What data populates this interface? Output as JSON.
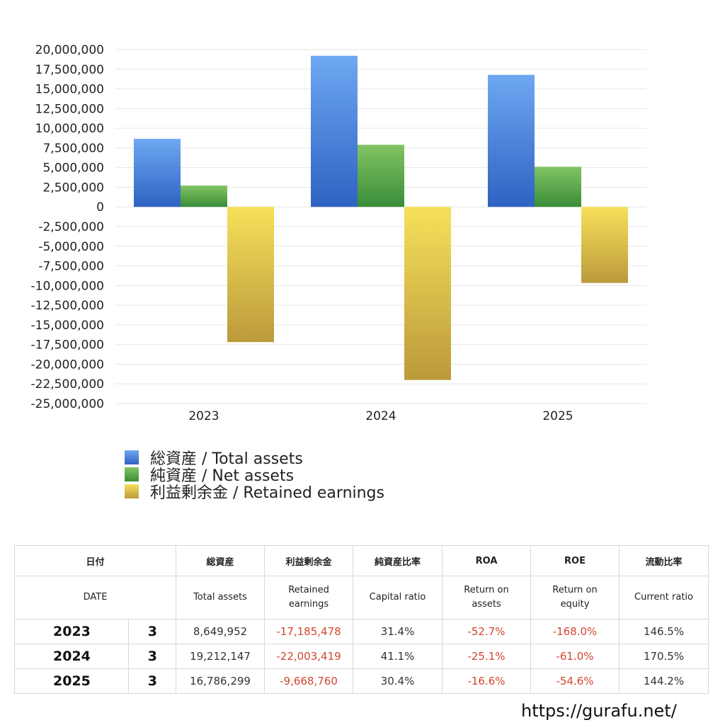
{
  "chart_data": {
    "type": "bar",
    "categories": [
      "2023",
      "2024",
      "2025"
    ],
    "series": [
      {
        "name": "総資産 / Total assets",
        "values": [
          8649952,
          19212147,
          16786299
        ],
        "color_top": "#6ea8f2",
        "color_bottom": "#2f62c2"
      },
      {
        "name": "純資産 / Net assets",
        "values": [
          2715000,
          7900000,
          5100000
        ],
        "color_top": "#82c464",
        "color_bottom": "#3a8d38"
      },
      {
        "name": "利益剰余金 / Retained earnings",
        "values": [
          -17185478,
          -22003419,
          -9668760
        ],
        "color_top": "#f6e05a",
        "color_bottom": "#bb9a3b"
      }
    ],
    "ylim": [
      -25000000,
      20000000
    ],
    "y_ticks": [
      "20,000,000",
      "17,500,000",
      "15,000,000",
      "12,500,000",
      "10,000,000",
      "7,500,000",
      "5,000,000",
      "2,500,000",
      "0",
      "-2,500,000",
      "-5,000,000",
      "-7,500,000",
      "-10,000,000",
      "-12,500,000",
      "-15,000,000",
      "-17,500,000",
      "-20,000,000",
      "-22,500,000",
      "-25,000,000"
    ],
    "y_tick_values": [
      20000000,
      17500000,
      15000000,
      12500000,
      10000000,
      7500000,
      5000000,
      2500000,
      0,
      -2500000,
      -5000000,
      -7500000,
      -10000000,
      -12500000,
      -15000000,
      -17500000,
      -20000000,
      -22500000,
      -25000000
    ],
    "grid": true,
    "legend_position": "bottom-left"
  },
  "table": {
    "header_jp": {
      "date": "日付",
      "total_assets": "総資産",
      "retained_earnings": "利益剰余金",
      "capital_ratio": "純資産比率",
      "roa": "ROA",
      "roe": "ROE",
      "current_ratio": "流動比率"
    },
    "header_en": {
      "date": "DATE",
      "total_assets": "Total assets",
      "retained_earnings_1": "Retained",
      "retained_earnings_2": "earnings",
      "capital_ratio": "Capital ratio",
      "roa_1": "Return on",
      "roa_2": "assets",
      "roe_1": "Return on",
      "roe_2": "equity",
      "current_ratio": "Current ratio"
    },
    "rows": [
      {
        "year": "2023",
        "month": "3",
        "total_assets": "8,649,952",
        "retained_earnings": "-17,185,478",
        "capital_ratio": "31.4%",
        "roa": "-52.7%",
        "roe": "-168.0%",
        "current_ratio": "146.5%"
      },
      {
        "year": "2024",
        "month": "3",
        "total_assets": "19,212,147",
        "retained_earnings": "-22,003,419",
        "capital_ratio": "41.1%",
        "roa": "-25.1%",
        "roe": "-61.0%",
        "current_ratio": "170.5%"
      },
      {
        "year": "2025",
        "month": "3",
        "total_assets": "16,786,299",
        "retained_earnings": "-9,668,760",
        "capital_ratio": "30.4%",
        "roa": "-16.6%",
        "roe": "-54.6%",
        "current_ratio": "144.2%"
      }
    ],
    "negative_color": "#d2462e"
  },
  "footer": {
    "url": "https://gurafu.net/"
  }
}
